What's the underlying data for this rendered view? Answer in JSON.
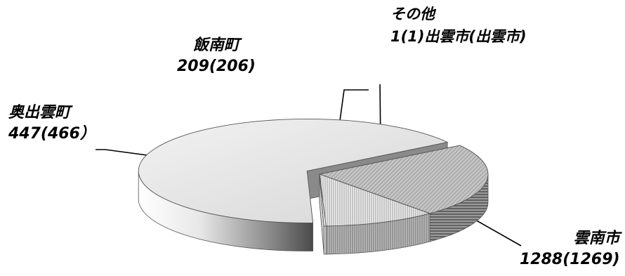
{
  "chart_data": {
    "type": "pie",
    "style": "3d-exploded",
    "slices": [
      {
        "name": "雲南市",
        "value": 1288,
        "previous": 1269,
        "label_value": "1288(1269)",
        "color": "#d8d8d8"
      },
      {
        "name": "奥出雲町",
        "value": 447,
        "previous": 466,
        "label_value": "447(466）",
        "color": "#a8a8a8"
      },
      {
        "name": "飯南町",
        "value": 209,
        "previous": 206,
        "label_value": "209(206)",
        "color": "#e6e6e6"
      },
      {
        "name": "その他",
        "value": 1,
        "previous": 1,
        "label_value": "1(1)出雲市(出雲市)",
        "color": "#ffffff"
      }
    ],
    "labels": {
      "other_line1": "その他",
      "other_line2": "1(1)出雲市(出雲市)",
      "iinan_line1": "飯南町",
      "iinan_line2": "209(206)",
      "okuizumo_line1": "奥出雲町",
      "okuizumo_line2": "447(466）",
      "unnan_line1": "雲南市",
      "unnan_line2": "1288(1269)"
    }
  }
}
